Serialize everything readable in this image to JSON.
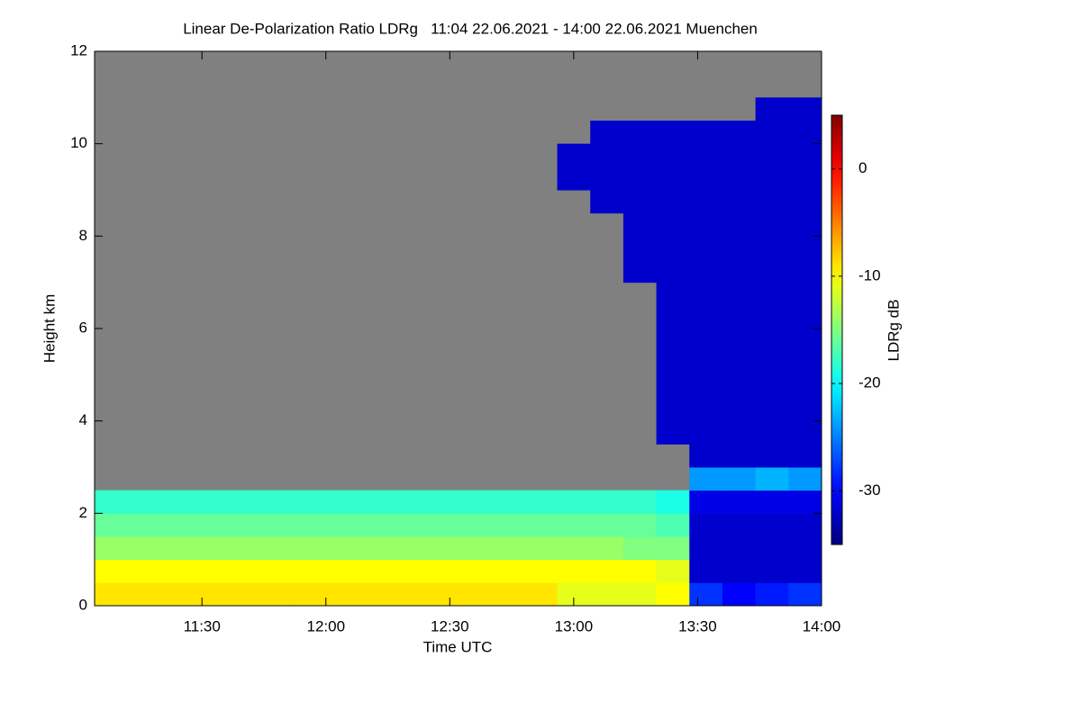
{
  "chart_data": {
    "type": "heatmap",
    "title": "Linear De-Polarization Ratio LDRg   11:04 22.06.2021 - 14:00 22.06.2021 Muenchen",
    "xlabel": "Time UTC",
    "ylabel": "Height km",
    "colorbar_label": "LDRg dB",
    "colormap": "jet",
    "missing_color": "#808080",
    "xlim": [
      11.0667,
      14.0
    ],
    "xticks": [
      {
        "value": 11.5,
        "label": "11:30"
      },
      {
        "value": 12.0,
        "label": "12:00"
      },
      {
        "value": 12.5,
        "label": "12:30"
      },
      {
        "value": 13.0,
        "label": "13:00"
      },
      {
        "value": 13.5,
        "label": "13:30"
      },
      {
        "value": 14.0,
        "label": "14:00"
      }
    ],
    "ylim": [
      0,
      12
    ],
    "yticks": [
      0,
      2,
      4,
      6,
      8,
      10,
      12
    ],
    "zlim": [
      -35,
      5
    ],
    "zticks": [
      0,
      -10,
      -20,
      -30
    ],
    "xbins": [
      11.0667,
      11.2,
      11.3333,
      11.4667,
      11.6,
      11.7333,
      11.8667,
      12.0,
      12.1333,
      12.2667,
      12.4,
      12.5333,
      12.6667,
      12.8,
      12.9333,
      13.0667,
      13.2,
      13.3333,
      13.4667,
      13.6,
      13.7333,
      13.8667,
      14.0
    ],
    "ybins": [
      0,
      0.5,
      1,
      1.5,
      2,
      2.5,
      3,
      3.5,
      4,
      4.5,
      5,
      5.5,
      6,
      6.5,
      7,
      7.5,
      8,
      8.5,
      9,
      9.5,
      10,
      10.5,
      11,
      11.5,
      12
    ],
    "z": [
      [
        -9,
        -9,
        -9,
        -9,
        -9,
        -9,
        -9,
        -9,
        -9,
        -9,
        -9,
        -9,
        -9,
        -9,
        -11,
        -11,
        -11,
        -10,
        -28,
        -30,
        -29,
        -28
      ],
      [
        -10,
        -10,
        -10,
        -10,
        -10,
        -10,
        -10,
        -10,
        -10,
        -10,
        -10,
        -10,
        -10,
        -10,
        -10,
        -10,
        -10,
        -11,
        -32,
        -32,
        -32,
        -32
      ],
      [
        -14,
        -14,
        -14,
        -14,
        -14,
        -14,
        -14,
        -14,
        -14,
        -14,
        -14,
        -14,
        -14,
        -14,
        -14,
        -14,
        -15,
        -15,
        -32,
        -32,
        -32,
        -32
      ],
      [
        -16,
        -16,
        -16,
        -16,
        -16,
        -16,
        -16,
        -16,
        -16,
        -16,
        -16,
        -16,
        -16,
        -16,
        -16,
        -16,
        -16,
        -17,
        -32,
        -32,
        -32,
        -32
      ],
      [
        -18,
        -18,
        -18,
        -18,
        -18,
        -18,
        -18,
        -18,
        -18,
        -18,
        -18,
        -18,
        -18,
        -18,
        -18,
        -18,
        -18,
        -19,
        -31,
        -31,
        -31,
        -31
      ],
      [
        null,
        null,
        null,
        null,
        null,
        null,
        null,
        null,
        null,
        null,
        null,
        null,
        null,
        null,
        null,
        null,
        null,
        null,
        -24,
        -24,
        -23,
        -24
      ],
      [
        null,
        null,
        null,
        null,
        null,
        null,
        null,
        null,
        null,
        null,
        null,
        null,
        null,
        null,
        null,
        null,
        null,
        null,
        -32,
        -32,
        -32,
        -32
      ],
      [
        null,
        null,
        null,
        null,
        null,
        null,
        null,
        null,
        null,
        null,
        null,
        null,
        null,
        null,
        null,
        null,
        null,
        -32,
        -32,
        -32,
        -32,
        -32
      ],
      [
        null,
        null,
        null,
        null,
        null,
        null,
        null,
        null,
        null,
        null,
        null,
        null,
        null,
        null,
        null,
        null,
        null,
        -32,
        -32,
        -32,
        -32,
        -32
      ],
      [
        null,
        null,
        null,
        null,
        null,
        null,
        null,
        null,
        null,
        null,
        null,
        null,
        null,
        null,
        null,
        null,
        null,
        -32,
        -32,
        -32,
        -32,
        -32
      ],
      [
        null,
        null,
        null,
        null,
        null,
        null,
        null,
        null,
        null,
        null,
        null,
        null,
        null,
        null,
        null,
        null,
        null,
        -32,
        -32,
        -32,
        -32,
        -32
      ],
      [
        null,
        null,
        null,
        null,
        null,
        null,
        null,
        null,
        null,
        null,
        null,
        null,
        null,
        null,
        null,
        null,
        null,
        -32,
        -32,
        -32,
        -32,
        -32
      ],
      [
        null,
        null,
        null,
        null,
        null,
        null,
        null,
        null,
        null,
        null,
        null,
        null,
        null,
        null,
        null,
        null,
        null,
        -32,
        -32,
        -32,
        -32,
        -32
      ],
      [
        null,
        null,
        null,
        null,
        null,
        null,
        null,
        null,
        null,
        null,
        null,
        null,
        null,
        null,
        null,
        null,
        null,
        -32,
        -32,
        -32,
        -32,
        -32
      ],
      [
        null,
        null,
        null,
        null,
        null,
        null,
        null,
        null,
        null,
        null,
        null,
        null,
        null,
        null,
        null,
        null,
        -32,
        -32,
        -32,
        -32,
        -32,
        -32
      ],
      [
        null,
        null,
        null,
        null,
        null,
        null,
        null,
        null,
        null,
        null,
        null,
        null,
        null,
        null,
        null,
        null,
        -32,
        -32,
        -32,
        -32,
        -32,
        -32
      ],
      [
        null,
        null,
        null,
        null,
        null,
        null,
        null,
        null,
        null,
        null,
        null,
        null,
        null,
        null,
        null,
        null,
        -32,
        -32,
        -32,
        -32,
        -32,
        -32
      ],
      [
        null,
        null,
        null,
        null,
        null,
        null,
        null,
        null,
        null,
        null,
        null,
        null,
        null,
        null,
        null,
        -32,
        -32,
        -32,
        -32,
        -32,
        -32,
        -32
      ],
      [
        null,
        null,
        null,
        null,
        null,
        null,
        null,
        null,
        null,
        null,
        null,
        null,
        null,
        null,
        -32,
        -32,
        -32,
        -32,
        -32,
        -32,
        -32,
        -32
      ],
      [
        null,
        null,
        null,
        null,
        null,
        null,
        null,
        null,
        null,
        null,
        null,
        null,
        null,
        null,
        -32,
        -32,
        -32,
        -32,
        -32,
        -32,
        -32,
        -32
      ],
      [
        null,
        null,
        null,
        null,
        null,
        null,
        null,
        null,
        null,
        null,
        null,
        null,
        null,
        null,
        null,
        -32,
        -32,
        -32,
        -32,
        -32,
        -32,
        -32
      ],
      [
        null,
        null,
        null,
        null,
        null,
        null,
        null,
        null,
        null,
        null,
        null,
        null,
        null,
        null,
        null,
        null,
        null,
        null,
        null,
        null,
        -32,
        -32
      ],
      [
        null,
        null,
        null,
        null,
        null,
        null,
        null,
        null,
        null,
        null,
        null,
        null,
        null,
        null,
        null,
        null,
        null,
        null,
        null,
        null,
        null,
        null
      ],
      [
        null,
        null,
        null,
        null,
        null,
        null,
        null,
        null,
        null,
        null,
        null,
        null,
        null,
        null,
        null,
        null,
        null,
        null,
        null,
        null,
        null,
        null
      ]
    ]
  }
}
